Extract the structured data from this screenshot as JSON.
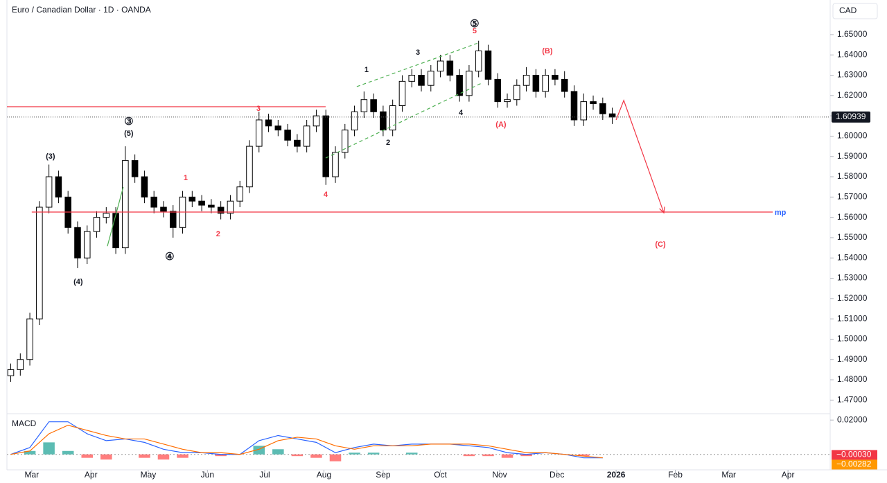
{
  "chart_data": {
    "type": "candlestick",
    "title": "Euro / Canadian Dollar · 1D · OANDA",
    "currency": "CAD",
    "up_color": "#ffffff",
    "down_color": "#000000",
    "x": [
      17,
      22,
      27,
      32,
      37,
      42,
      47,
      52,
      57,
      62,
      67,
      72,
      77,
      82,
      87,
      92,
      97,
      102,
      107,
      112,
      117,
      122,
      127,
      132,
      137,
      142,
      147,
      152,
      157,
      162,
      167,
      172,
      177,
      182,
      187,
      192,
      197,
      202,
      207,
      212,
      217,
      222,
      227,
      232,
      237,
      242,
      247,
      252,
      257,
      262,
      267,
      272,
      277,
      282,
      287,
      292,
      297,
      302,
      307,
      312,
      317,
      322,
      327,
      332
    ],
    "open": [
      1.482,
      1.485,
      1.49,
      1.51,
      1.565,
      1.58,
      1.57,
      1.555,
      1.54,
      1.553,
      1.56,
      1.562,
      1.545,
      1.588,
      1.58,
      1.57,
      1.565,
      1.563,
      1.555,
      1.57,
      1.568,
      1.566,
      1.565,
      1.562,
      1.568,
      1.575,
      1.595,
      1.608,
      1.605,
      1.603,
      1.598,
      1.595,
      1.605,
      1.61,
      1.58,
      1.592,
      1.603,
      1.612,
      1.618,
      1.612,
      1.603,
      1.615,
      1.627,
      1.63,
      1.625,
      1.632,
      1.637,
      1.63,
      1.62,
      1.632,
      1.642,
      1.628,
      1.617,
      1.618,
      1.625,
      1.63,
      1.622,
      1.63,
      1.628,
      1.622,
      1.608,
      1.617,
      1.616,
      1.611
    ],
    "high": [
      1.488,
      1.493,
      1.513,
      1.568,
      1.586,
      1.583,
      1.573,
      1.558,
      1.556,
      1.563,
      1.565,
      1.565,
      1.595,
      1.591,
      1.583,
      1.573,
      1.568,
      1.566,
      1.573,
      1.573,
      1.571,
      1.569,
      1.568,
      1.571,
      1.578,
      1.598,
      1.612,
      1.611,
      1.608,
      1.606,
      1.601,
      1.608,
      1.613,
      1.613,
      1.595,
      1.606,
      1.615,
      1.622,
      1.621,
      1.615,
      1.618,
      1.63,
      1.633,
      1.633,
      1.635,
      1.64,
      1.64,
      1.633,
      1.635,
      1.647,
      1.645,
      1.631,
      1.621,
      1.628,
      1.634,
      1.633,
      1.633,
      1.633,
      1.632,
      1.625,
      1.621,
      1.62,
      1.619,
      1.614
    ],
    "low": [
      1.479,
      1.482,
      1.487,
      1.507,
      1.562,
      1.567,
      1.552,
      1.535,
      1.537,
      1.55,
      1.557,
      1.542,
      1.542,
      1.577,
      1.567,
      1.562,
      1.56,
      1.55,
      1.552,
      1.565,
      1.563,
      1.562,
      1.559,
      1.559,
      1.565,
      1.572,
      1.592,
      1.602,
      1.6,
      1.595,
      1.592,
      1.592,
      1.602,
      1.576,
      1.577,
      1.589,
      1.6,
      1.609,
      1.609,
      1.6,
      1.6,
      1.612,
      1.624,
      1.622,
      1.622,
      1.629,
      1.627,
      1.617,
      1.617,
      1.629,
      1.625,
      1.614,
      1.614,
      1.615,
      1.622,
      1.619,
      1.619,
      1.625,
      1.619,
      1.605,
      1.605,
      1.613,
      1.608,
      1.606
    ],
    "close": [
      1.485,
      1.49,
      1.51,
      1.565,
      1.58,
      1.57,
      1.555,
      1.54,
      1.553,
      1.56,
      1.562,
      1.545,
      1.588,
      1.58,
      1.57,
      1.565,
      1.563,
      1.555,
      1.57,
      1.568,
      1.566,
      1.565,
      1.562,
      1.568,
      1.575,
      1.595,
      1.608,
      1.605,
      1.603,
      1.598,
      1.595,
      1.605,
      1.61,
      1.58,
      1.592,
      1.603,
      1.612,
      1.618,
      1.612,
      1.603,
      1.615,
      1.627,
      1.63,
      1.625,
      1.632,
      1.637,
      1.63,
      1.62,
      1.632,
      1.642,
      1.628,
      1.617,
      1.618,
      1.625,
      1.63,
      1.622,
      1.63,
      1.628,
      1.622,
      1.608,
      1.617,
      1.616,
      1.611,
      1.6094
    ],
    "xlim": [
      15,
      445
    ],
    "xticks": [
      {
        "value": 28,
        "label": "Mar"
      },
      {
        "value": 59,
        "label": "Apr"
      },
      {
        "value": 89,
        "label": "May"
      },
      {
        "value": 120,
        "label": "Jun"
      },
      {
        "value": 150,
        "label": "Jul"
      },
      {
        "value": 181,
        "label": "Aug"
      },
      {
        "value": 212,
        "label": "Sep"
      },
      {
        "value": 242,
        "label": "Oct"
      },
      {
        "value": 273,
        "label": "Nov"
      },
      {
        "value": 303,
        "label": "Dec"
      },
      {
        "value": 334,
        "label": "2026"
      },
      {
        "value": 365,
        "label": "Feb"
      },
      {
        "value": 393,
        "label": "Mar"
      },
      {
        "value": 424,
        "label": "Apr"
      }
    ],
    "ylim": [
      1.465,
      1.665
    ],
    "yticks": [
      {
        "value": 1.47,
        "label": "1.47000"
      },
      {
        "value": 1.48,
        "label": "1.48000"
      },
      {
        "value": 1.49,
        "label": "1.49000"
      },
      {
        "value": 1.5,
        "label": "1.50000"
      },
      {
        "value": 1.51,
        "label": "1.51000"
      },
      {
        "value": 1.52,
        "label": "1.52000"
      },
      {
        "value": 1.53,
        "label": "1.53000"
      },
      {
        "value": 1.54,
        "label": "1.54000"
      },
      {
        "value": 1.55,
        "label": "1.55000"
      },
      {
        "value": 1.56,
        "label": "1.56000"
      },
      {
        "value": 1.57,
        "label": "1.57000"
      },
      {
        "value": 1.58,
        "label": "1.58000"
      },
      {
        "value": 1.59,
        "label": "1.59000"
      },
      {
        "value": 1.6,
        "label": "1.60000"
      },
      {
        "value": 1.61,
        "label": "1.61000"
      },
      {
        "value": 1.62,
        "label": "1.62000"
      },
      {
        "value": 1.63,
        "label": "1.63000"
      },
      {
        "value": 1.64,
        "label": "1.64000"
      },
      {
        "value": 1.65,
        "label": "1.65000"
      }
    ],
    "last_price": {
      "value": 1.60939,
      "label": "1.60939"
    },
    "annotations": [
      {
        "text": "(3)",
        "x": 37.8,
        "y": 1.5899,
        "color": "#131722"
      },
      {
        "text": "(4)",
        "x": 52.3,
        "y": 1.5281,
        "color": "#131722"
      },
      {
        "text": "③",
        "x": 78.8,
        "y": 1.607,
        "color": "#131722"
      },
      {
        "text": "(5)",
        "x": 78.8,
        "y": 1.6012,
        "color": "#131722"
      },
      {
        "text": "④",
        "x": 100.2,
        "y": 1.5404,
        "color": "#131722"
      },
      {
        "text": "1",
        "x": 108.6,
        "y": 1.5793,
        "color": "#f23645"
      },
      {
        "text": "2",
        "x": 125.6,
        "y": 1.5516,
        "color": "#f23645"
      },
      {
        "text": "3",
        "x": 146.7,
        "y": 1.6135,
        "color": "#f23645"
      },
      {
        "text": "4",
        "x": 181.9,
        "y": 1.5711,
        "color": "#f23645"
      },
      {
        "text": "1",
        "x": 203.3,
        "y": 1.6326,
        "color": "#131722"
      },
      {
        "text": "2",
        "x": 214.6,
        "y": 1.5967,
        "color": "#131722"
      },
      {
        "text": "3",
        "x": 230.2,
        "y": 1.6411,
        "color": "#131722"
      },
      {
        "text": "4",
        "x": 252.7,
        "y": 1.6114,
        "color": "#131722"
      },
      {
        "text": "⑤",
        "x": 259.9,
        "y": 1.6551,
        "color": "#131722"
      },
      {
        "text": "5",
        "x": 259.9,
        "y": 1.6517,
        "color": "#f23645"
      },
      {
        "text": "(A)",
        "x": 273.7,
        "y": 1.6056,
        "color": "#f23645"
      },
      {
        "text": "(B)",
        "x": 298,
        "y": 1.6418,
        "color": "#f23645"
      },
      {
        "text": "(C)",
        "x": 357.2,
        "y": 1.5465,
        "color": "#f23645"
      },
      {
        "text": "mp",
        "x": 420,
        "y": 1.5622,
        "color": "#2962ff"
      }
    ],
    "lines": [
      {
        "x": [
          15,
          181.9
        ],
        "y": [
          1.6145,
          1.6145
        ],
        "color": "#f23645",
        "style": "solid"
      },
      {
        "x": [
          28,
          416
        ],
        "y": [
          1.5626,
          1.5626
        ],
        "color": "#f23645",
        "style": "solid"
      },
      {
        "x": [
          198.2,
          261.8
        ],
        "y": [
          1.6244,
          1.6459
        ],
        "color": "#4caf50",
        "style": "dashed"
      },
      {
        "x": [
          181.9,
          263.8
        ],
        "y": [
          1.5892,
          1.6262
        ],
        "color": "#4caf50",
        "style": "dashed"
      },
      {
        "x": [
          67.6,
          75.9
        ],
        "y": [
          1.5458,
          1.5749
        ],
        "color": "#4caf50",
        "style": "solid"
      },
      {
        "x": [
          334,
          338,
          359
        ],
        "y": [
          1.608,
          1.6176,
          1.5622
        ],
        "color": "#f23645",
        "style": "arrow"
      }
    ],
    "macd": {
      "title": "MACD",
      "macd_color": "#2962ff",
      "signal_color": "#ff6d00",
      "up_color": "#26a69a",
      "down_color": "#ff5252",
      "x": [
        17,
        27,
        37,
        47,
        57,
        67,
        77,
        87,
        97,
        107,
        117,
        127,
        137,
        147,
        157,
        167,
        177,
        187,
        197,
        207,
        217,
        227,
        237,
        247,
        257,
        267,
        277,
        287,
        297,
        307,
        317,
        327
      ],
      "macd": [
        0,
        0.004,
        0.019,
        0.019,
        0.012,
        0.008,
        0.009,
        0.007,
        0.003,
        0.001,
        0.001,
        0,
        0,
        0.008,
        0.011,
        0.009,
        0.007,
        0.001,
        0.004,
        0.006,
        0.005,
        0.006,
        0.006,
        0.006,
        0.005,
        0.004,
        0.001,
        0,
        0.001,
        0,
        -0.002,
        -0.002
      ],
      "signal": [
        0,
        0.002,
        0.012,
        0.017,
        0.014,
        0.011,
        0.009,
        0.009,
        0.006,
        0.003,
        0.001,
        0.001,
        0,
        0.003,
        0.008,
        0.01,
        0.009,
        0.005,
        0.003,
        0.005,
        0.005,
        0.005,
        0.006,
        0.006,
        0.006,
        0.005,
        0.003,
        0.001,
        0.001,
        0,
        -0.001,
        -0.002
      ],
      "histogram": [
        0,
        0.002,
        0.007,
        0.002,
        -0.002,
        -0.003,
        0,
        -0.002,
        -0.003,
        -0.002,
        0,
        -0.001,
        0,
        0.005,
        0.003,
        -0.001,
        -0.002,
        -0.004,
        0.001,
        0.001,
        0,
        0.001,
        0,
        0,
        -0.001,
        -0.001,
        -0.002,
        -0.001,
        0,
        0,
        -0.001,
        0
      ],
      "ylim": [
        -0.009,
        0.0225
      ],
      "yticks": [
        {
          "value": 0.02,
          "label": "0.02000"
        }
      ],
      "readouts": [
        {
          "value": -0.0003,
          "label": "−0.00030",
          "color": "#f23645"
        },
        {
          "value": -0.00282,
          "label": "−0.00282",
          "color": "#ff9800"
        }
      ]
    }
  }
}
